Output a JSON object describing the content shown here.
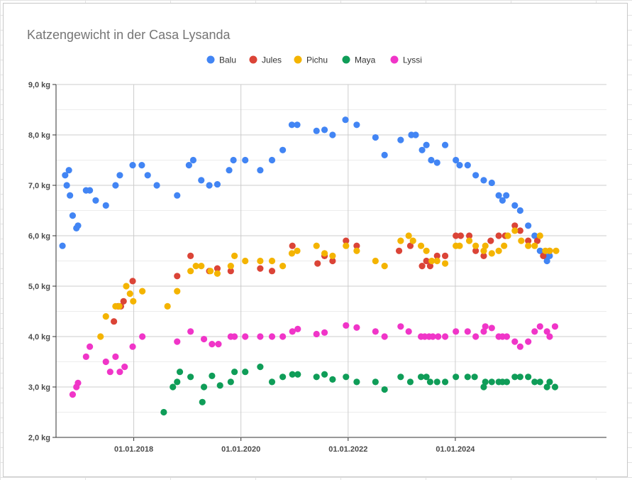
{
  "chart_data": {
    "type": "scatter",
    "title": "Katzengewicht in der Casa Lysanda",
    "xlabel": "",
    "ylabel": "",
    "xlim": [
      2016.55,
      2026.82
    ],
    "ylim": [
      2.0,
      9.0
    ],
    "x_ticks": [
      {
        "value": 2018.0,
        "label": "01.01.2018"
      },
      {
        "value": 2020.0,
        "label": "01.01.2020"
      },
      {
        "value": 2022.0,
        "label": "01.01.2022"
      },
      {
        "value": 2024.0,
        "label": "01.01.2024"
      }
    ],
    "y_ticks": [
      {
        "value": 2,
        "label": "2,0 kg"
      },
      {
        "value": 3,
        "label": "3,0 kg"
      },
      {
        "value": 4,
        "label": "4,0 kg"
      },
      {
        "value": 5,
        "label": "5,0 kg"
      },
      {
        "value": 6,
        "label": "6,0 kg"
      },
      {
        "value": 7,
        "label": "7,0 kg"
      },
      {
        "value": 8,
        "label": "8,0 kg"
      },
      {
        "value": 9,
        "label": "9,0 kg"
      }
    ],
    "grid": true,
    "legend": "top-center",
    "series": [
      {
        "name": "Balu",
        "color": "#4285f4",
        "points": [
          [
            2016.67,
            5.8
          ],
          [
            2016.72,
            7.2
          ],
          [
            2016.75,
            7.0
          ],
          [
            2016.79,
            7.3
          ],
          [
            2016.81,
            6.8
          ],
          [
            2016.86,
            6.4
          ],
          [
            2016.93,
            6.15
          ],
          [
            2016.96,
            6.2
          ],
          [
            2017.11,
            6.9
          ],
          [
            2017.18,
            6.9
          ],
          [
            2017.29,
            6.7
          ],
          [
            2017.48,
            6.6
          ],
          [
            2017.66,
            7.0
          ],
          [
            2017.74,
            7.2
          ],
          [
            2017.98,
            7.4
          ],
          [
            2018.15,
            7.4
          ],
          [
            2018.26,
            7.2
          ],
          [
            2018.43,
            7.0
          ],
          [
            2018.81,
            6.8
          ],
          [
            2019.03,
            7.4
          ],
          [
            2019.11,
            7.5
          ],
          [
            2019.26,
            7.1
          ],
          [
            2019.41,
            7.0
          ],
          [
            2019.56,
            7.02
          ],
          [
            2019.78,
            7.3
          ],
          [
            2019.86,
            7.5
          ],
          [
            2020.08,
            7.5
          ],
          [
            2020.36,
            7.3
          ],
          [
            2020.58,
            7.5
          ],
          [
            2020.78,
            7.7
          ],
          [
            2020.95,
            8.2
          ],
          [
            2021.05,
            8.2
          ],
          [
            2021.41,
            8.08
          ],
          [
            2021.56,
            8.1
          ],
          [
            2021.71,
            8.0
          ],
          [
            2021.95,
            8.3
          ],
          [
            2022.16,
            8.2
          ],
          [
            2022.51,
            7.95
          ],
          [
            2022.68,
            7.6
          ],
          [
            2022.98,
            7.9
          ],
          [
            2023.18,
            8.0
          ],
          [
            2023.26,
            8.0
          ],
          [
            2023.38,
            7.7
          ],
          [
            2023.46,
            7.8
          ],
          [
            2023.55,
            7.5
          ],
          [
            2023.66,
            7.45
          ],
          [
            2023.81,
            7.8
          ],
          [
            2024.01,
            7.5
          ],
          [
            2024.08,
            7.4
          ],
          [
            2024.23,
            7.4
          ],
          [
            2024.38,
            7.2
          ],
          [
            2024.53,
            7.1
          ],
          [
            2024.68,
            7.05
          ],
          [
            2024.81,
            6.8
          ],
          [
            2024.88,
            6.7
          ],
          [
            2024.95,
            6.8
          ],
          [
            2025.11,
            6.6
          ],
          [
            2025.21,
            6.5
          ],
          [
            2025.36,
            6.2
          ],
          [
            2025.48,
            6.0
          ],
          [
            2025.58,
            5.7
          ],
          [
            2025.66,
            5.6
          ],
          [
            2025.71,
            5.5
          ],
          [
            2025.76,
            5.6
          ]
        ]
      },
      {
        "name": "Jules",
        "color": "#db4437",
        "points": [
          [
            2017.63,
            4.3
          ],
          [
            2017.71,
            4.6
          ],
          [
            2017.76,
            4.6
          ],
          [
            2017.81,
            4.7
          ],
          [
            2017.98,
            5.1
          ],
          [
            2018.81,
            5.2
          ],
          [
            2019.06,
            5.6
          ],
          [
            2019.41,
            5.3
          ],
          [
            2019.56,
            5.35
          ],
          [
            2019.81,
            5.3
          ],
          [
            2020.36,
            5.35
          ],
          [
            2020.58,
            5.3
          ],
          [
            2020.96,
            5.8
          ],
          [
            2021.43,
            5.45
          ],
          [
            2021.56,
            5.6
          ],
          [
            2021.71,
            5.5
          ],
          [
            2021.96,
            5.9
          ],
          [
            2022.16,
            5.8
          ],
          [
            2022.95,
            5.7
          ],
          [
            2023.16,
            5.8
          ],
          [
            2023.38,
            5.4
          ],
          [
            2023.46,
            5.5
          ],
          [
            2023.53,
            5.4
          ],
          [
            2023.66,
            5.6
          ],
          [
            2023.81,
            5.6
          ],
          [
            2024.01,
            6.0
          ],
          [
            2024.1,
            6.0
          ],
          [
            2024.26,
            6.0
          ],
          [
            2024.38,
            5.7
          ],
          [
            2024.53,
            5.6
          ],
          [
            2024.66,
            5.9
          ],
          [
            2024.81,
            6.0
          ],
          [
            2024.93,
            6.0
          ],
          [
            2025.11,
            6.2
          ],
          [
            2025.21,
            6.1
          ],
          [
            2025.36,
            5.9
          ],
          [
            2025.53,
            5.9
          ],
          [
            2025.64,
            5.6
          ],
          [
            2025.76,
            5.7
          ]
        ]
      },
      {
        "name": "Pichu",
        "color": "#f4b400",
        "points": [
          [
            2017.38,
            4.0
          ],
          [
            2017.48,
            4.4
          ],
          [
            2017.66,
            4.6
          ],
          [
            2017.73,
            4.6
          ],
          [
            2017.86,
            5.0
          ],
          [
            2017.93,
            4.85
          ],
          [
            2017.99,
            4.7
          ],
          [
            2018.16,
            4.9
          ],
          [
            2018.63,
            4.6
          ],
          [
            2018.81,
            4.9
          ],
          [
            2019.06,
            5.3
          ],
          [
            2019.16,
            5.4
          ],
          [
            2019.26,
            5.4
          ],
          [
            2019.43,
            5.3
          ],
          [
            2019.56,
            5.25
          ],
          [
            2019.81,
            5.4
          ],
          [
            2019.88,
            5.6
          ],
          [
            2020.08,
            5.5
          ],
          [
            2020.36,
            5.5
          ],
          [
            2020.58,
            5.5
          ],
          [
            2020.78,
            5.4
          ],
          [
            2020.95,
            5.65
          ],
          [
            2021.05,
            5.7
          ],
          [
            2021.41,
            5.8
          ],
          [
            2021.56,
            5.65
          ],
          [
            2021.71,
            5.6
          ],
          [
            2021.96,
            5.8
          ],
          [
            2022.16,
            5.7
          ],
          [
            2022.51,
            5.5
          ],
          [
            2022.68,
            5.4
          ],
          [
            2022.98,
            5.9
          ],
          [
            2023.13,
            6.0
          ],
          [
            2023.21,
            5.9
          ],
          [
            2023.36,
            5.8
          ],
          [
            2023.46,
            5.7
          ],
          [
            2023.56,
            5.5
          ],
          [
            2023.66,
            5.5
          ],
          [
            2023.81,
            5.45
          ],
          [
            2024.01,
            5.8
          ],
          [
            2024.08,
            5.8
          ],
          [
            2024.26,
            5.9
          ],
          [
            2024.38,
            5.8
          ],
          [
            2024.53,
            5.7
          ],
          [
            2024.56,
            5.8
          ],
          [
            2024.68,
            5.65
          ],
          [
            2024.81,
            5.7
          ],
          [
            2024.91,
            5.8
          ],
          [
            2024.98,
            6.0
          ],
          [
            2025.11,
            6.1
          ],
          [
            2025.23,
            5.9
          ],
          [
            2025.36,
            5.8
          ],
          [
            2025.48,
            5.8
          ],
          [
            2025.58,
            6.0
          ],
          [
            2025.68,
            5.7
          ],
          [
            2025.76,
            5.7
          ],
          [
            2025.88,
            5.7
          ]
        ]
      },
      {
        "name": "Maya",
        "color": "#0f9d58",
        "points": [
          [
            2018.56,
            2.5
          ],
          [
            2018.73,
            3.0
          ],
          [
            2018.81,
            3.1
          ],
          [
            2018.86,
            3.3
          ],
          [
            2019.06,
            3.2
          ],
          [
            2019.28,
            2.7
          ],
          [
            2019.31,
            3.0
          ],
          [
            2019.46,
            3.22
          ],
          [
            2019.61,
            3.03
          ],
          [
            2019.81,
            3.1
          ],
          [
            2019.88,
            3.3
          ],
          [
            2020.08,
            3.3
          ],
          [
            2020.36,
            3.4
          ],
          [
            2020.58,
            3.1
          ],
          [
            2020.78,
            3.2
          ],
          [
            2020.96,
            3.25
          ],
          [
            2021.06,
            3.25
          ],
          [
            2021.41,
            3.2
          ],
          [
            2021.56,
            3.25
          ],
          [
            2021.71,
            3.15
          ],
          [
            2021.96,
            3.2
          ],
          [
            2022.16,
            3.1
          ],
          [
            2022.51,
            3.1
          ],
          [
            2022.68,
            2.95
          ],
          [
            2022.98,
            3.2
          ],
          [
            2023.16,
            3.1
          ],
          [
            2023.36,
            3.2
          ],
          [
            2023.46,
            3.2
          ],
          [
            2023.53,
            3.1
          ],
          [
            2023.66,
            3.1
          ],
          [
            2023.81,
            3.1
          ],
          [
            2024.01,
            3.2
          ],
          [
            2024.23,
            3.2
          ],
          [
            2024.36,
            3.2
          ],
          [
            2024.53,
            3.0
          ],
          [
            2024.56,
            3.1
          ],
          [
            2024.68,
            3.1
          ],
          [
            2024.81,
            3.1
          ],
          [
            2024.88,
            3.1
          ],
          [
            2024.96,
            3.1
          ],
          [
            2025.11,
            3.2
          ],
          [
            2025.21,
            3.2
          ],
          [
            2025.36,
            3.2
          ],
          [
            2025.48,
            3.1
          ],
          [
            2025.58,
            3.1
          ],
          [
            2025.71,
            3.0
          ],
          [
            2025.76,
            3.1
          ],
          [
            2025.86,
            3.0
          ]
        ]
      },
      {
        "name": "Lyssi",
        "color": "#f035c8",
        "points": [
          [
            2016.86,
            2.85
          ],
          [
            2016.93,
            3.0
          ],
          [
            2016.96,
            3.08
          ],
          [
            2017.11,
            3.6
          ],
          [
            2017.18,
            3.8
          ],
          [
            2017.48,
            3.5
          ],
          [
            2017.56,
            3.3
          ],
          [
            2017.66,
            3.6
          ],
          [
            2017.74,
            3.3
          ],
          [
            2017.83,
            3.4
          ],
          [
            2017.98,
            3.8
          ],
          [
            2018.16,
            4.0
          ],
          [
            2018.81,
            3.9
          ],
          [
            2019.06,
            4.1
          ],
          [
            2019.31,
            3.95
          ],
          [
            2019.46,
            3.85
          ],
          [
            2019.58,
            3.85
          ],
          [
            2019.81,
            4.0
          ],
          [
            2019.88,
            4.0
          ],
          [
            2020.08,
            4.0
          ],
          [
            2020.36,
            4.0
          ],
          [
            2020.58,
            4.0
          ],
          [
            2020.78,
            4.0
          ],
          [
            2020.96,
            4.1
          ],
          [
            2021.06,
            4.15
          ],
          [
            2021.41,
            4.05
          ],
          [
            2021.56,
            4.08
          ],
          [
            2021.96,
            4.22
          ],
          [
            2022.16,
            4.18
          ],
          [
            2022.51,
            4.1
          ],
          [
            2022.68,
            4.0
          ],
          [
            2022.98,
            4.2
          ],
          [
            2023.13,
            4.1
          ],
          [
            2023.36,
            4.0
          ],
          [
            2023.43,
            4.0
          ],
          [
            2023.51,
            4.0
          ],
          [
            2023.58,
            4.0
          ],
          [
            2023.68,
            4.0
          ],
          [
            2023.81,
            4.0
          ],
          [
            2024.01,
            4.1
          ],
          [
            2024.23,
            4.1
          ],
          [
            2024.38,
            4.0
          ],
          [
            2024.53,
            4.1
          ],
          [
            2024.56,
            4.2
          ],
          [
            2024.68,
            4.17
          ],
          [
            2024.81,
            4.0
          ],
          [
            2024.88,
            4.0
          ],
          [
            2024.96,
            4.0
          ],
          [
            2025.11,
            3.9
          ],
          [
            2025.21,
            3.8
          ],
          [
            2025.36,
            3.9
          ],
          [
            2025.48,
            4.1
          ],
          [
            2025.58,
            4.2
          ],
          [
            2025.71,
            4.1
          ],
          [
            2025.76,
            4.0
          ],
          [
            2025.86,
            4.2
          ]
        ]
      }
    ]
  }
}
